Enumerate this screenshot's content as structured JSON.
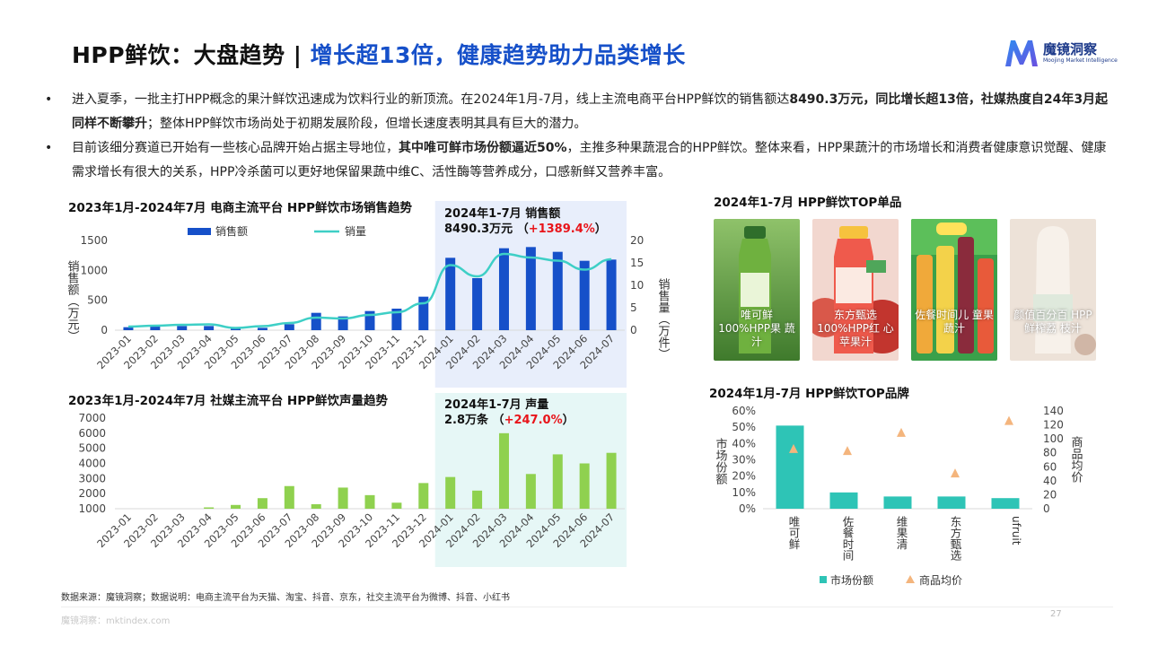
{
  "header": {
    "title_part1": "HPP鲜饮：大盘趋势 | ",
    "title_part2": "增长超13倍，健康趋势助力品类增长"
  },
  "logo": {
    "cn": "魔镜洞察",
    "en": "Moojing Market Intelligence"
  },
  "bullets": [
    {
      "dot": "•",
      "s1": "进入夏季，一批主打HPP概念的果汁鲜饮迅速成为饮料行业的新顶流。在2024年1月-7月，线上主流电商平台HPP鲜饮的销售额达",
      "b1": "8490.3万元，同比增长超13倍，社媒热度自24年3月起同样不断攀升",
      "s2": "；整体HPP鲜饮市场尚处于初期发展阶段，但增长速度表明其具有巨大的潜力。"
    },
    {
      "dot": "•",
      "s1": "目前该细分赛道已开始有一些核心品牌开始占据主导地位，",
      "b1": "其中唯可鲜市场份额逼近50%",
      "s2": "，主推多种果蔬混合的HPP鲜饮。整体来看，HPP果蔬汁的市场增长和消费者健康意识觉醒、健康需求增长有很大的关系，HPP冷杀菌可以更好地保留果蔬中维C、活性酶等营养成分，口感新鲜又营养丰富。"
    }
  ],
  "colors": {
    "blue_bar": "#1650c9",
    "teal_line": "#3ecfc6",
    "green_bar": "#8fd14f",
    "teal_bar": "#2ec4b6",
    "orange_marker": "#f4b57d",
    "red_text": "#e8141a",
    "highlight_blue": "#e8eefb",
    "highlight_teal": "#e6f7f6"
  },
  "chart_data": [
    {
      "id": "ecommerce",
      "type": "bar+line",
      "title": "2023年1月-2024年7月 电商主流平台 HPP鲜饮市场销售趋势",
      "categories": [
        "2023-01",
        "2023-02",
        "2023-03",
        "2023-04",
        "2023-05",
        "2023-06",
        "2023-07",
        "2023-08",
        "2023-09",
        "2023-10",
        "2023-11",
        "2023-12",
        "2024-01",
        "2024-02",
        "2024-03",
        "2024-04",
        "2024-05",
        "2024-06",
        "2024-07"
      ],
      "series": [
        {
          "name": "销售额",
          "type": "bar",
          "axis": "left",
          "values": [
            50,
            60,
            70,
            70,
            30,
            40,
            100,
            290,
            230,
            320,
            360,
            560,
            1210,
            870,
            1370,
            1390,
            1310,
            1160,
            1180
          ]
        },
        {
          "name": "销量",
          "type": "line",
          "axis": "right",
          "values": [
            0.8,
            1.0,
            1.2,
            1.3,
            0.5,
            0.9,
            1.6,
            2.8,
            2.6,
            3.4,
            4.0,
            6.0,
            14.5,
            12.0,
            17.0,
            16.2,
            15.5,
            13.5,
            15.8
          ]
        }
      ],
      "ylabel": "销售额（万元）",
      "y2label": "销售量（万件）",
      "ylim": [
        0,
        1500
      ],
      "y2lim": [
        0,
        20
      ],
      "yticks": [
        0,
        500,
        1000,
        1500
      ],
      "y2ticks": [
        0,
        5,
        10,
        15,
        20
      ],
      "highlight": {
        "from": "2024-01",
        "to": "2024-07"
      },
      "annotation": {
        "line1": "2024年1-7月 销售额",
        "line2": "8490.3万元",
        "pct_open": "（",
        "pct": "+1389.4%",
        "pct_close": "）"
      }
    },
    {
      "id": "social",
      "type": "bar",
      "title": "2023年1月-2024年7月 社媒主流平台 HPP鲜饮声量趋势",
      "categories": [
        "2023-01",
        "2023-02",
        "2023-03",
        "2023-04",
        "2023-05",
        "2023-06",
        "2023-07",
        "2023-08",
        "2023-09",
        "2023-10",
        "2023-11",
        "2023-12",
        "2024-01",
        "2024-02",
        "2024-03",
        "2024-04",
        "2024-05",
        "2024-06",
        "2024-07"
      ],
      "series": [
        {
          "name": "声量",
          "values": [
            600,
            500,
            800,
            1050,
            1250,
            1700,
            2500,
            1300,
            2400,
            1900,
            1400,
            2700,
            3100,
            2200,
            6000,
            3300,
            4600,
            4000,
            4700
          ]
        }
      ],
      "ylim": [
        1000,
        7000
      ],
      "yticks": [
        1000,
        2000,
        3000,
        4000,
        5000,
        6000,
        7000
      ],
      "highlight": {
        "from": "2024-01",
        "to": "2024-07"
      },
      "annotation": {
        "line1": "2024年1-7月 声量",
        "line2": "2.8万条",
        "pct_open": "（",
        "pct": "+247.0%",
        "pct_close": "）"
      }
    },
    {
      "id": "brands",
      "type": "bar+scatter",
      "title": "2024年1月-7月 HPP鲜饮TOP品牌",
      "categories": [
        "唯可鲜",
        "佐餐时间",
        "维果清",
        "东方甄选",
        "ufruit"
      ],
      "series": [
        {
          "name": "市场份额",
          "type": "bar",
          "axis": "left",
          "values": [
            0.51,
            0.1,
            0.075,
            0.075,
            0.065
          ]
        },
        {
          "name": "商品均价",
          "type": "scatter",
          "axis": "right",
          "values": [
            85,
            82,
            108,
            50,
            125
          ]
        }
      ],
      "ylabel": "市场份额",
      "y2label": "商品均价",
      "ylim": [
        0,
        0.6
      ],
      "y2lim": [
        0,
        140
      ],
      "yticks": [
        "0%",
        "10%",
        "20%",
        "30%",
        "40%",
        "50%",
        "60%"
      ],
      "y2ticks": [
        0,
        20,
        40,
        60,
        80,
        100,
        120,
        140
      ]
    }
  ],
  "top_products": {
    "title": "2024年1-7月 HPP鲜饮TOP单品",
    "items": [
      {
        "caption": "唯可鲜 100%HPP果 蔬汁"
      },
      {
        "caption": "东方甄选 100%HPP红 心苹果汁"
      },
      {
        "caption": "佐餐时间儿 童果蔬汁"
      },
      {
        "caption": "颜值百分百 HPP鲜榨荔 枝汁"
      }
    ]
  },
  "footnote": "数据来源：魔镜洞察；数据说明：电商主流平台为天猫、淘宝、抖音、京东，社交主流平台为微博、抖音、小红书",
  "footer": {
    "site": "魔镜洞察：mktindex.com",
    "page": "27"
  }
}
